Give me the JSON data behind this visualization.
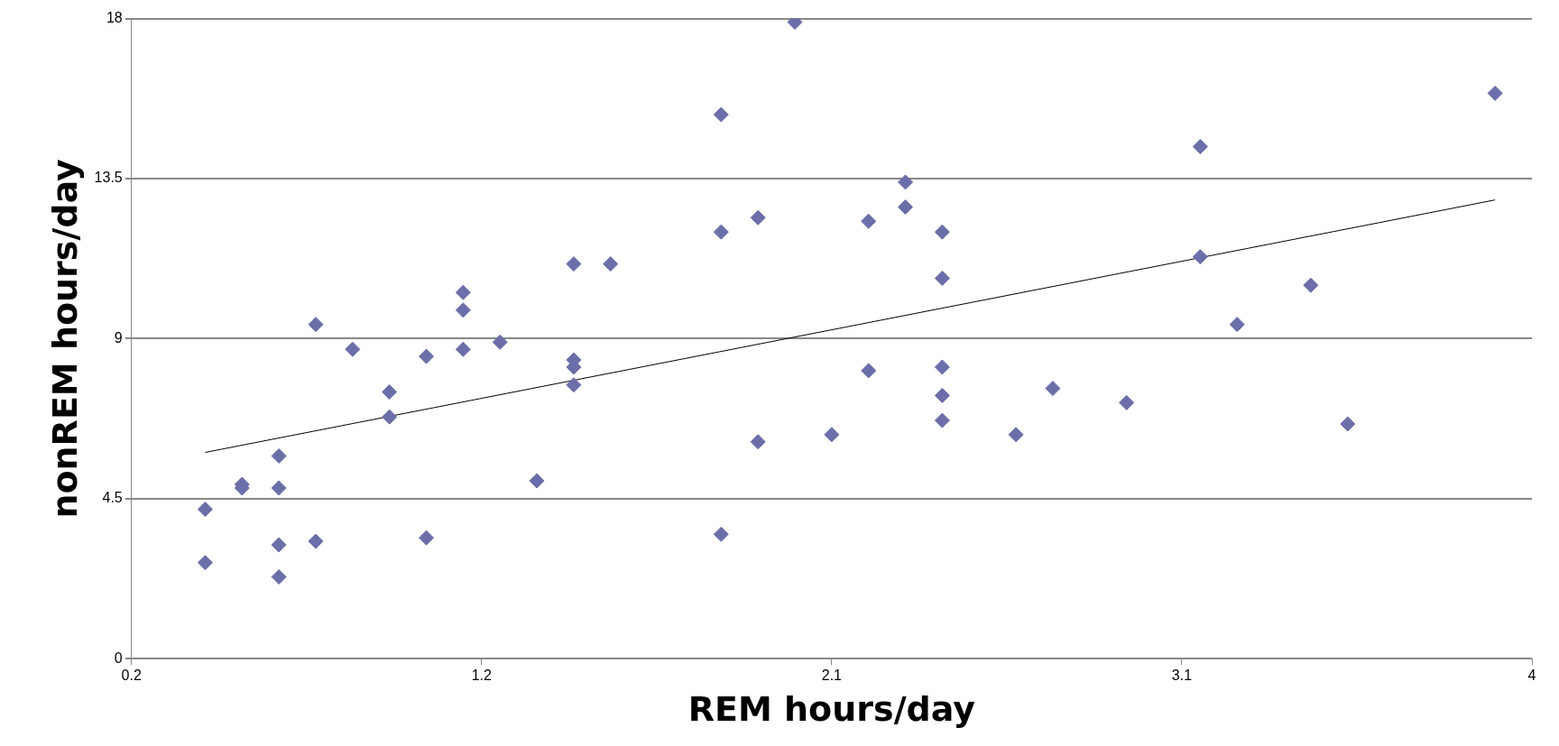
{
  "chart_data": {
    "type": "scatter",
    "xlabel": "REM hours/day",
    "ylabel": "nonREM hours/day",
    "xlim": [
      0.2,
      4
    ],
    "xticks": [
      0.2,
      {
        "value": 1.15,
        "label": "1.2"
      },
      2.1,
      {
        "value": 3.05,
        "label": "3.1"
      },
      4
    ],
    "ylim": [
      0,
      18
    ],
    "yticks": [
      0,
      4.5,
      9,
      13.5,
      18
    ],
    "grid": "y",
    "legend": false,
    "marker": "diamond",
    "series": [
      {
        "type": "scatter",
        "color": "#6b6ea8",
        "x": [
          0.4,
          0.4,
          0.5,
          0.5,
          0.6,
          0.6,
          0.6,
          0.6,
          0.7,
          0.7,
          0.8,
          0.9,
          0.9,
          1.0,
          1.0,
          1.1,
          1.1,
          1.1,
          1.2,
          1.3,
          1.4,
          1.4,
          1.4,
          1.4,
          1.5,
          1.8,
          1.8,
          1.8,
          1.9,
          1.9,
          2.0,
          2.1,
          2.2,
          2.2,
          2.3,
          2.3,
          2.4,
          2.4,
          2.4,
          2.4,
          2.4,
          2.6,
          2.7,
          2.9,
          3.1,
          3.1,
          3.2,
          3.4,
          3.5,
          3.9
        ],
        "values": [
          4.2,
          2.7,
          4.9,
          4.8,
          5.7,
          4.8,
          3.2,
          2.3,
          9.4,
          3.3,
          8.7,
          7.5,
          6.8,
          8.5,
          3.4,
          10.3,
          9.8,
          8.7,
          8.9,
          5.0,
          11.1,
          8.4,
          8.2,
          7.7,
          11.1,
          15.3,
          12.0,
          3.5,
          12.4,
          6.1,
          17.9,
          6.3,
          12.3,
          8.1,
          13.4,
          12.7,
          12.0,
          10.7,
          8.2,
          7.4,
          6.7,
          6.3,
          7.6,
          7.2,
          14.4,
          11.3,
          9.4,
          10.5,
          6.6,
          15.9
        ]
      },
      {
        "type": "line",
        "color": "#000000",
        "marker": "none",
        "x": [
          0.4,
          3.9
        ],
        "values": [
          5.8,
          12.9
        ]
      }
    ]
  }
}
